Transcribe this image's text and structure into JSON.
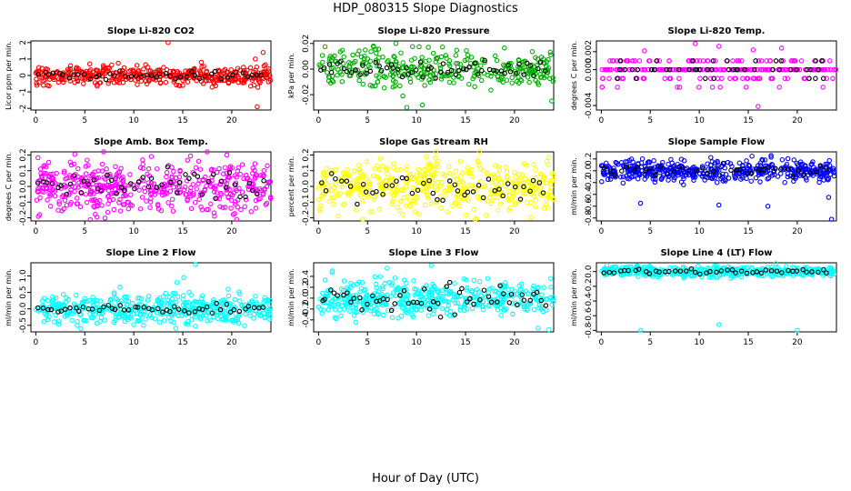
{
  "figure": {
    "title": "HDP_080315  Slope Diagnostics",
    "xlabel": "Hour of Day (UTC)"
  },
  "chart_data": [
    {
      "type": "scatter",
      "title": "Slope Li-820 CO2",
      "ylabel": "Licor ppm per min.",
      "color": "#ff0000",
      "xlim": [
        -0.5,
        24
      ],
      "ylim": [
        -2.1,
        2.1
      ],
      "xticks": [
        0,
        5,
        10,
        15,
        20
      ],
      "yticks": [
        -2,
        -1,
        0,
        1,
        2
      ],
      "ytick_labels": [
        "-2",
        "-1",
        "0",
        "1",
        "2"
      ],
      "main_spread": 0.28,
      "black_spread": 0.12,
      "n_main": 420,
      "n_black": 45,
      "outliers": [
        [
          13.5,
          2.0
        ],
        [
          22.6,
          -1.9
        ],
        [
          23.2,
          1.4
        ],
        [
          22.4,
          1.0
        ],
        [
          21.2,
          0.5
        ],
        [
          14.6,
          -0.6
        ],
        [
          5.5,
          0.7
        ],
        [
          18.2,
          -0.5
        ],
        [
          1.2,
          -0.6
        ],
        [
          16.9,
          0.8
        ]
      ]
    },
    {
      "type": "scatter",
      "title": "Slope Li-820 Pressure",
      "ylabel": "kPa per min.",
      "color": "#00b000",
      "xlim": [
        -0.5,
        24
      ],
      "ylim": [
        -0.032,
        0.022
      ],
      "xticks": [
        0,
        5,
        10,
        15,
        20
      ],
      "yticks": [
        -0.02,
        0.0,
        0.02
      ],
      "ytick_labels": [
        "-0.02",
        "0.00",
        "0.02"
      ],
      "main_spread": 0.007,
      "black_spread": 0.003,
      "n_main": 330,
      "n_black": 60,
      "outliers": [
        [
          9.0,
          -0.03
        ],
        [
          23.8,
          -0.025
        ],
        [
          7.9,
          0.02
        ],
        [
          5.6,
          0.018
        ],
        [
          10.6,
          -0.028
        ],
        [
          8.6,
          -0.021
        ],
        [
          11.2,
          0.017
        ],
        [
          3.5,
          0.011
        ]
      ]
    },
    {
      "type": "scatter",
      "title": "Slope Li-820 Temp.",
      "ylabel": "degrees C per min.",
      "color": "#ff00ff",
      "xlim": [
        -0.5,
        24
      ],
      "ylim": [
        -0.0045,
        0.0032
      ],
      "xticks": [
        0,
        5,
        10,
        15,
        20
      ],
      "yticks": [
        -0.004,
        0.0,
        0.002
      ],
      "ytick_labels": [
        "-0.004",
        "0.000",
        "0.002"
      ],
      "levels": [
        0.00098,
        0.0,
        -0.00098,
        -0.00196
      ],
      "n_main": 260,
      "n_black": 50,
      "outliers": [
        [
          16.0,
          -0.0041
        ],
        [
          9.6,
          0.0029
        ],
        [
          12.0,
          0.0026
        ],
        [
          15.5,
          0.0022
        ],
        [
          18.4,
          0.0024
        ],
        [
          4.4,
          0.0021
        ]
      ]
    },
    {
      "type": "scatter",
      "title": "Slope Amb. Box Temp.",
      "ylabel": "degrees C per min.",
      "color": "#ff00ff",
      "xlim": [
        -0.5,
        24
      ],
      "ylim": [
        -0.22,
        0.22
      ],
      "xticks": [
        0,
        5,
        10,
        15,
        20
      ],
      "yticks": [
        -0.2,
        -0.1,
        0.0,
        0.1,
        0.2
      ],
      "ytick_labels": [
        "-0.2",
        "-0.1",
        "0.0",
        "0.1",
        "0.2"
      ],
      "main_spread": 0.08,
      "black_spread": 0.05,
      "n_main": 480,
      "n_black": 50,
      "outliers": [
        [
          19.5,
          0.2
        ],
        [
          20.5,
          -0.21
        ],
        [
          0.4,
          -0.18
        ],
        [
          11.8,
          0.19
        ]
      ]
    },
    {
      "type": "scatter",
      "title": "Slope Gas Stream RH",
      "ylabel": "percent per min.",
      "color": "#ffff00",
      "xlim": [
        -0.5,
        24
      ],
      "ylim": [
        -0.22,
        0.22
      ],
      "xticks": [
        0,
        5,
        10,
        15,
        20
      ],
      "yticks": [
        -0.2,
        -0.1,
        0.0,
        0.1,
        0.2
      ],
      "ytick_labels": [
        "-0.2",
        "-0.1",
        "0.0",
        "0.1",
        "0.2"
      ],
      "main_spread": 0.08,
      "black_spread": 0.05,
      "n_main": 460,
      "n_black": 45,
      "outliers": [
        [
          11.0,
          0.19
        ],
        [
          16.0,
          -0.21
        ],
        [
          2.0,
          -0.19
        ],
        [
          23.3,
          0.16
        ]
      ]
    },
    {
      "type": "scatter",
      "title": "Slope Sample Flow",
      "ylabel": "ml/min per min.",
      "color": "#0000ff",
      "xlim": [
        -0.5,
        24
      ],
      "ylim": [
        -0.85,
        0.32
      ],
      "xticks": [
        0,
        5,
        10,
        15,
        20
      ],
      "yticks": [
        -0.8,
        -0.6,
        -0.4,
        -0.2,
        0.0,
        0.2
      ],
      "ytick_labels": [
        "-0.8",
        "-0.6",
        "-0.4",
        "-0.2",
        "0.0",
        "0.2"
      ],
      "main_spread": 0.09,
      "black_spread": 0.05,
      "n_main": 480,
      "n_black": 40,
      "outliers": [
        [
          4.0,
          -0.55
        ],
        [
          12.0,
          -0.58
        ],
        [
          23.5,
          -0.82
        ],
        [
          23.2,
          -0.45
        ],
        [
          17.0,
          -0.6
        ]
      ]
    },
    {
      "type": "scatter",
      "title": "Slope Line 2 Flow",
      "ylabel": "ml/min per min.",
      "color": "#00ffff",
      "xlim": [
        -0.5,
        24
      ],
      "ylim": [
        -0.7,
        1.4
      ],
      "xticks": [
        0,
        5,
        10,
        15,
        20
      ],
      "yticks": [
        -0.5,
        0.0,
        0.5,
        1.0
      ],
      "ytick_labels": [
        "-0.5",
        "0.0",
        "0.5",
        "1.0"
      ],
      "main_spread": 0.22,
      "black_spread": 0.07,
      "n_main": 460,
      "n_black": 50,
      "outliers": [
        [
          16.3,
          1.35
        ],
        [
          14.4,
          0.8
        ],
        [
          15.1,
          0.95
        ],
        [
          4.6,
          -0.6
        ],
        [
          11.0,
          -0.5
        ]
      ]
    },
    {
      "type": "scatter",
      "title": "Slope Line 3 Flow",
      "ylabel": "ml/min per min.",
      "color": "#00ffff",
      "xlim": [
        -0.5,
        24
      ],
      "ylim": [
        -0.62,
        0.65
      ],
      "xticks": [
        0,
        5,
        10,
        15,
        20
      ],
      "yticks": [
        -0.4,
        -0.2,
        0.0,
        0.2,
        0.4
      ],
      "ytick_labels": [
        "-0.4",
        "-0.2",
        "0.0",
        "0.2",
        "0.4"
      ],
      "main_spread": 0.16,
      "black_spread": 0.14,
      "n_main": 460,
      "n_black": 55,
      "outliers": [
        [
          11.5,
          0.6
        ],
        [
          23.5,
          -0.58
        ],
        [
          22.4,
          -0.55
        ],
        [
          1.4,
          0.5
        ],
        [
          7.0,
          0.55
        ]
      ]
    },
    {
      "type": "scatter",
      "title": "Slope Line 4 (LT) Flow",
      "ylabel": "ml/min per min.",
      "color": "#00ffff",
      "xlim": [
        -0.5,
        24
      ],
      "ylim": [
        -0.82,
        0.12
      ],
      "xticks": [
        0,
        5,
        10,
        15,
        20
      ],
      "yticks": [
        -0.8,
        -0.6,
        -0.4,
        -0.2,
        0.0
      ],
      "ytick_labels": [
        "-0.8",
        "-0.6",
        "-0.4",
        "-0.2",
        "0.0"
      ],
      "main_spread": 0.035,
      "black_spread": 0.02,
      "n_main": 460,
      "n_black": 45,
      "outliers": [
        [
          4.0,
          -0.8
        ],
        [
          12.0,
          -0.72
        ],
        [
          20.0,
          -0.8
        ]
      ]
    }
  ]
}
